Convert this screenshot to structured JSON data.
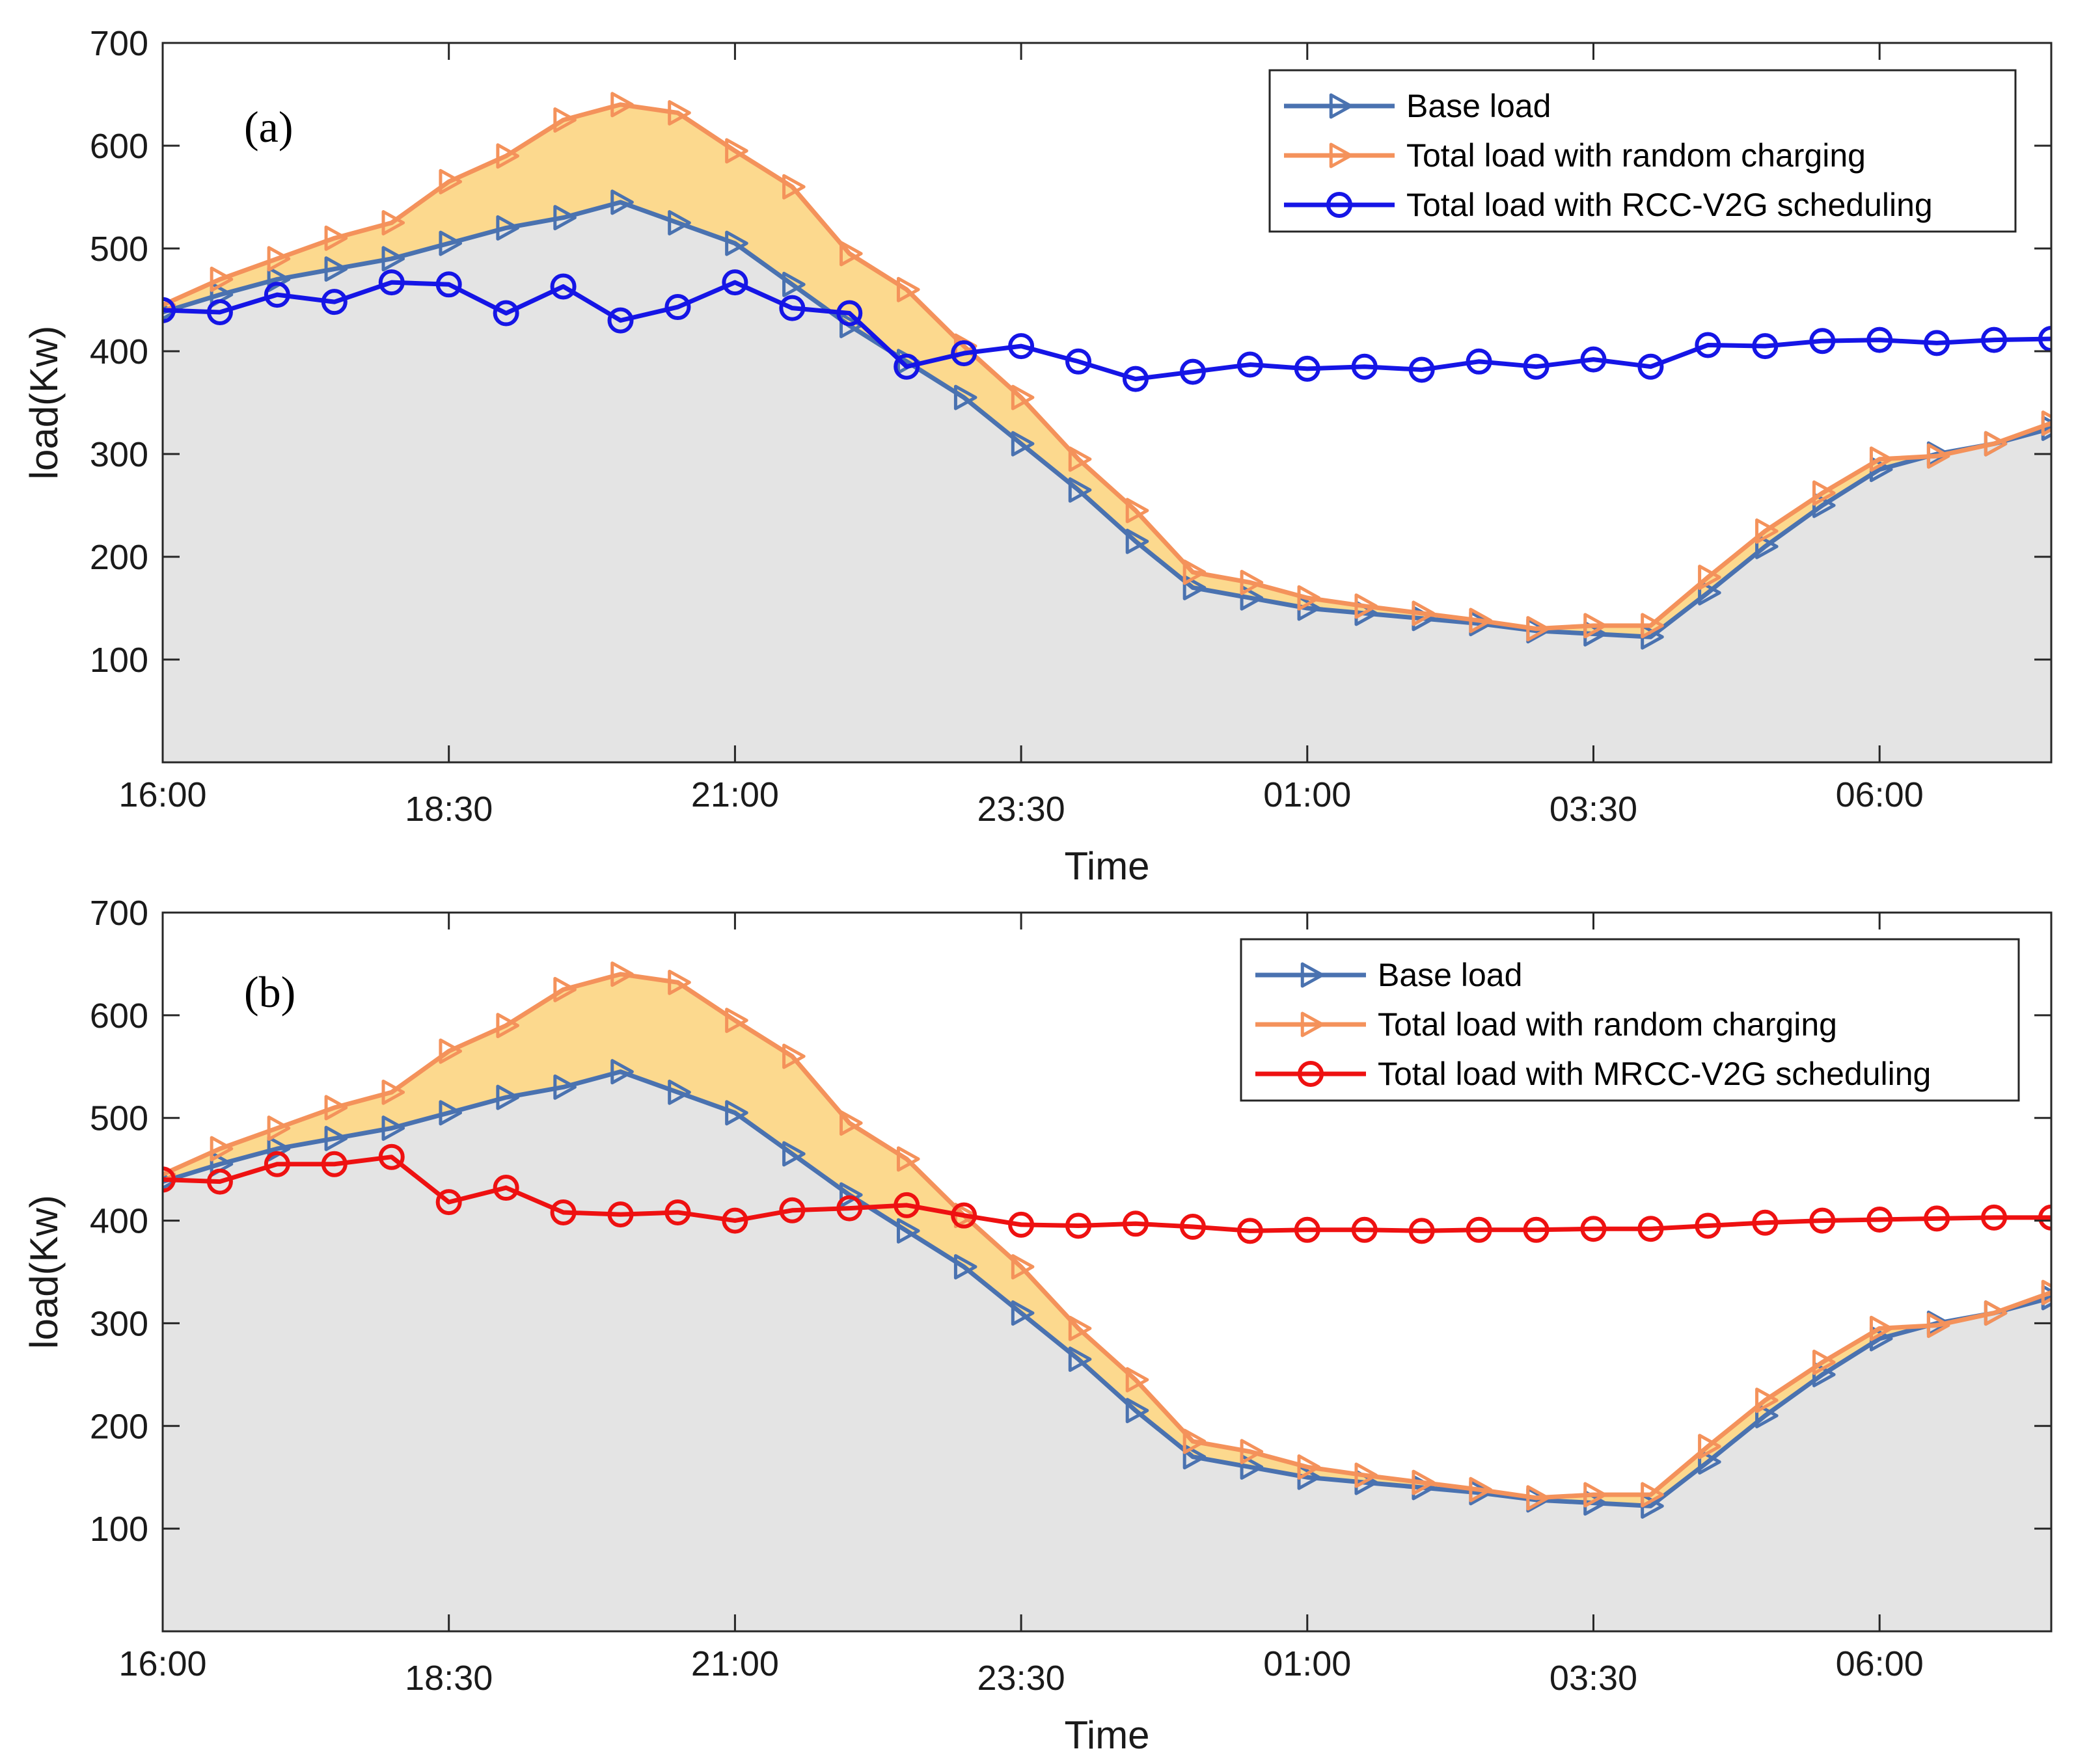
{
  "colors": {
    "base": "#4a72b0",
    "random": "#f4925b",
    "rcc": "#1515e6",
    "mrcc": "#ee1111",
    "base_fill": "#e4e4e4",
    "ev_fill": "#fcd98e",
    "axis": "#262626"
  },
  "chart_data": [
    {
      "type": "line",
      "panel_label": "(a)",
      "xlabel": "Time",
      "ylabel": "load(Kw)",
      "ylim": [
        0,
        700
      ],
      "yticks": [
        100,
        200,
        300,
        400,
        500,
        600,
        700
      ],
      "xlim": [
        0,
        33
      ],
      "xtick_positions": [
        0,
        5,
        10,
        15,
        20,
        25,
        30
      ],
      "xtick_labels": [
        "16:00",
        "18:30",
        "21:00",
        "23:30",
        "01:00",
        "03:30",
        "06:00"
      ],
      "legend_position": "top-right",
      "series": [
        {
          "name": "Base load",
          "color_key": "base",
          "marker": "triangle-right",
          "values": [
            438,
            455,
            470,
            480,
            490,
            505,
            520,
            530,
            545,
            525,
            505,
            465,
            425,
            390,
            355,
            310,
            265,
            215,
            170,
            160,
            150,
            145,
            140,
            135,
            128,
            125,
            122,
            165,
            210,
            250,
            285,
            300,
            310,
            325
          ]
        },
        {
          "name": "Total load with random charging",
          "color_key": "random",
          "marker": "triangle-right",
          "values": [
            445,
            470,
            490,
            510,
            525,
            565,
            590,
            625,
            640,
            632,
            595,
            560,
            495,
            460,
            405,
            355,
            295,
            245,
            185,
            175,
            160,
            152,
            145,
            138,
            130,
            133,
            133,
            180,
            225,
            262,
            295,
            298,
            310,
            330
          ]
        },
        {
          "name": "Total load with RCC-V2G scheduling",
          "color_key": "rcc",
          "marker": "circle",
          "values": [
            440,
            438,
            455,
            448,
            467,
            465,
            437,
            463,
            430,
            443,
            467,
            442,
            437,
            385,
            398,
            405,
            390,
            373,
            380,
            387,
            383,
            385,
            382,
            390,
            385,
            392,
            385,
            406,
            405,
            410,
            411,
            408,
            411,
            412
          ]
        }
      ]
    },
    {
      "type": "line",
      "panel_label": "(b)",
      "xlabel": "Time",
      "ylabel": "load(Kw)",
      "ylim": [
        0,
        700
      ],
      "yticks": [
        100,
        200,
        300,
        400,
        500,
        600,
        700
      ],
      "xlim": [
        0,
        33
      ],
      "xtick_positions": [
        0,
        5,
        10,
        15,
        20,
        25,
        30
      ],
      "xtick_labels": [
        "16:00",
        "18:30",
        "21:00",
        "23:30",
        "01:00",
        "03:30",
        "06:00"
      ],
      "legend_position": "top-right",
      "series": [
        {
          "name": "Base load",
          "color_key": "base",
          "marker": "triangle-right",
          "values": [
            438,
            455,
            470,
            480,
            490,
            505,
            520,
            530,
            545,
            525,
            505,
            465,
            425,
            390,
            355,
            310,
            265,
            215,
            170,
            160,
            150,
            145,
            140,
            135,
            128,
            125,
            122,
            165,
            210,
            250,
            285,
            300,
            310,
            325
          ]
        },
        {
          "name": "Total load with random charging",
          "color_key": "random",
          "marker": "triangle-right",
          "values": [
            445,
            470,
            490,
            510,
            525,
            565,
            590,
            625,
            640,
            632,
            595,
            560,
            495,
            460,
            405,
            355,
            295,
            245,
            185,
            175,
            160,
            152,
            145,
            138,
            130,
            133,
            133,
            180,
            225,
            262,
            295,
            298,
            310,
            330
          ]
        },
        {
          "name": "Total load with MRCC-V2G scheduling",
          "color_key": "mrcc",
          "marker": "circle",
          "values": [
            440,
            438,
            455,
            455,
            462,
            418,
            432,
            408,
            406,
            408,
            400,
            410,
            412,
            415,
            405,
            396,
            395,
            397,
            394,
            390,
            391,
            391,
            390,
            391,
            391,
            392,
            392,
            395,
            398,
            400,
            401,
            402,
            403,
            403
          ]
        }
      ]
    }
  ]
}
